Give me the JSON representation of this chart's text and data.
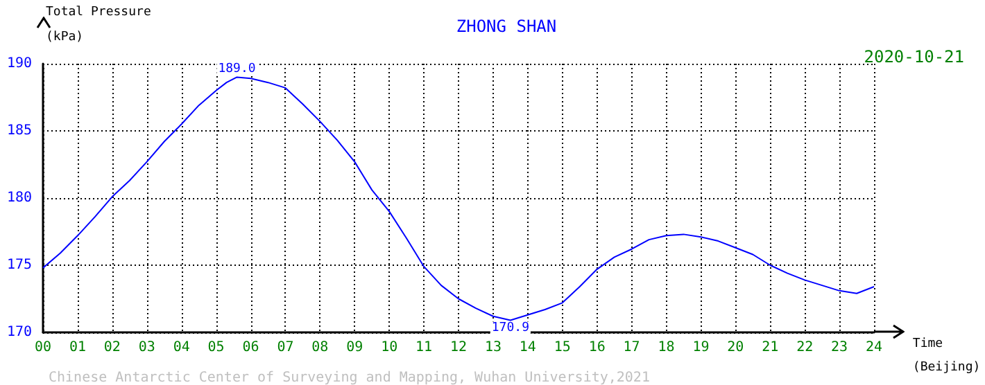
{
  "chart_data": {
    "type": "line",
    "title": "ZHONG SHAN",
    "xlabel": "Time (Beijing)",
    "ylabel": "Total Pressure (kPa)",
    "annotations": [
      "2020-10-21",
      "Chinese Antarctic Center of Surveying and Mapping, Wuhan University,2021",
      {
        "text": "189.0",
        "x": 5.6,
        "y": 189.0
      },
      {
        "text": "170.9",
        "x": 13.5,
        "y": 170.9
      }
    ],
    "series": [
      {
        "color": "#0000ff",
        "x": [
          0,
          0.5,
          1,
          1.5,
          2,
          2.5,
          3,
          3.5,
          4,
          4.5,
          5,
          5.3,
          5.6,
          6,
          6.5,
          7,
          7.5,
          8,
          8.5,
          9,
          9.5,
          10,
          10.5,
          11,
          11.5,
          12,
          12.5,
          13,
          13.5,
          14,
          14.5,
          15,
          15.5,
          16,
          16.5,
          17,
          17.5,
          18,
          18.5,
          19,
          19.5,
          20,
          20.5,
          21,
          21.5,
          22,
          22.5,
          23,
          23.5,
          24
        ],
        "values": [
          174.8,
          175.9,
          177.2,
          178.6,
          180.1,
          181.3,
          182.7,
          184.2,
          185.5,
          186.9,
          188.0,
          188.6,
          189.0,
          188.9,
          188.6,
          188.2,
          187.0,
          185.7,
          184.3,
          182.7,
          180.6,
          179.0,
          177.0,
          174.9,
          173.5,
          172.5,
          171.8,
          171.2,
          170.9,
          171.3,
          171.7,
          172.2,
          173.4,
          174.7,
          175.6,
          176.2,
          176.9,
          177.2,
          177.3,
          177.1,
          176.8,
          176.3,
          175.8,
          175.0,
          174.4,
          173.9,
          173.5,
          173.1,
          172.9,
          173.4
        ]
      }
    ],
    "xlim": [
      0,
      24
    ],
    "xticks": [
      {
        "value": 0,
        "label": "00"
      },
      {
        "value": 1,
        "label": "01"
      },
      {
        "value": 2,
        "label": "02"
      },
      {
        "value": 3,
        "label": "03"
      },
      {
        "value": 4,
        "label": "04"
      },
      {
        "value": 5,
        "label": "05"
      },
      {
        "value": 6,
        "label": "06"
      },
      {
        "value": 7,
        "label": "07"
      },
      {
        "value": 8,
        "label": "08"
      },
      {
        "value": 9,
        "label": "09"
      },
      10,
      11,
      12,
      13,
      14,
      15,
      16,
      17,
      18,
      19,
      20,
      21,
      22,
      23,
      24
    ],
    "ylim": [
      170,
      190
    ],
    "yticks": [
      170,
      175,
      180,
      185,
      190
    ],
    "grid": true,
    "marker": "none",
    "line_style": "solid"
  }
}
